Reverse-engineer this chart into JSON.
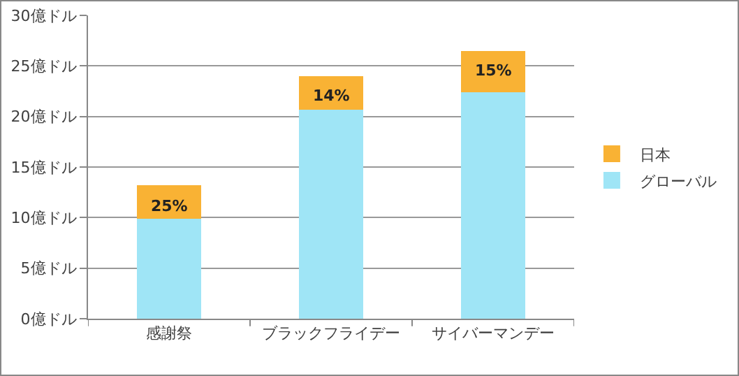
{
  "chart_data": {
    "type": "bar",
    "stacked": true,
    "categories": [
      "感謝祭",
      "ブラックフライデー",
      "サイバーマンデー"
    ],
    "series": [
      {
        "name": "グローバル",
        "color": "#9fe5f6",
        "values": [
          9.9,
          20.7,
          22.4
        ]
      },
      {
        "name": "日本",
        "color": "#f9b234",
        "values": [
          3.3,
          3.3,
          4.1
        ]
      }
    ],
    "ylim": [
      0,
      30
    ],
    "yticks": [
      {
        "value": 0,
        "label": "0億ドル"
      },
      {
        "value": 5,
        "label": "5億ドル"
      },
      {
        "value": 10,
        "label": "10億ドル"
      },
      {
        "value": 15,
        "label": "15億ドル"
      },
      {
        "value": 20,
        "label": "20億ドル"
      },
      {
        "value": 25,
        "label": "25億ドル"
      },
      {
        "value": 30,
        "label": "30億ドル"
      }
    ],
    "annotations": [
      {
        "text": "25%",
        "x": "感謝祭",
        "y": 13.2
      },
      {
        "text": "14%",
        "x": "ブラックフライデー",
        "y": 24.0
      },
      {
        "text": "15%",
        "x": "サイバーマンデー",
        "y": 26.5
      }
    ],
    "grid": "y",
    "legend": "right"
  }
}
